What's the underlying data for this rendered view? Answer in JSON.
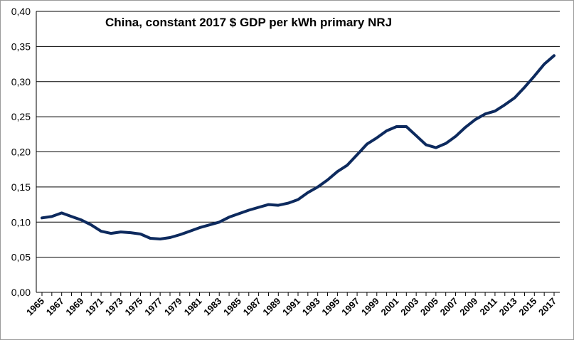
{
  "chart_data": {
    "type": "line",
    "title": "China, constant 2017 $ GDP per kWh primary NRJ",
    "xlabel": "",
    "ylabel": "",
    "ylim": [
      0,
      0.4
    ],
    "yticks": [
      0,
      0.05,
      0.1,
      0.15,
      0.2,
      0.25,
      0.3,
      0.35,
      0.4
    ],
    "ytick_labels": [
      "0,00",
      "0,05",
      "0,10",
      "0,15",
      "0,20",
      "0,25",
      "0,30",
      "0,35",
      "0,40"
    ],
    "xtick_labels": [
      "1965",
      "1967",
      "1969",
      "1971",
      "1973",
      "1975",
      "1977",
      "1979",
      "1981",
      "1983",
      "1985",
      "1987",
      "1989",
      "1991",
      "1993",
      "1995",
      "1997",
      "1999",
      "2001",
      "2003",
      "2005",
      "2007",
      "2009",
      "2011",
      "2013",
      "2015",
      "2017"
    ],
    "x": [
      1965,
      1966,
      1967,
      1968,
      1969,
      1970,
      1971,
      1972,
      1973,
      1974,
      1975,
      1976,
      1977,
      1978,
      1979,
      1980,
      1981,
      1982,
      1983,
      1984,
      1985,
      1986,
      1987,
      1988,
      1989,
      1990,
      1991,
      1992,
      1993,
      1994,
      1995,
      1996,
      1997,
      1998,
      1999,
      2000,
      2001,
      2002,
      2003,
      2004,
      2005,
      2006,
      2007,
      2008,
      2009,
      2010,
      2011,
      2012,
      2013,
      2014,
      2015,
      2016,
      2017
    ],
    "series": [
      {
        "name": "",
        "color": "#0d2a5e",
        "values": [
          0.106,
          0.108,
          0.113,
          0.108,
          0.103,
          0.096,
          0.087,
          0.084,
          0.086,
          0.085,
          0.083,
          0.077,
          0.076,
          0.078,
          0.082,
          0.087,
          0.092,
          0.096,
          0.1,
          0.107,
          0.112,
          0.117,
          0.121,
          0.125,
          0.124,
          0.127,
          0.132,
          0.142,
          0.15,
          0.16,
          0.172,
          0.181,
          0.196,
          0.211,
          0.22,
          0.23,
          0.236,
          0.236,
          0.223,
          0.21,
          0.206,
          0.212,
          0.222,
          0.235,
          0.246,
          0.254,
          0.258,
          0.267,
          0.277,
          0.292,
          0.308,
          0.325,
          0.337
        ]
      }
    ],
    "grid": {
      "horizontal": true,
      "vertical": false,
      "color": "#000000"
    },
    "legend": "none"
  }
}
